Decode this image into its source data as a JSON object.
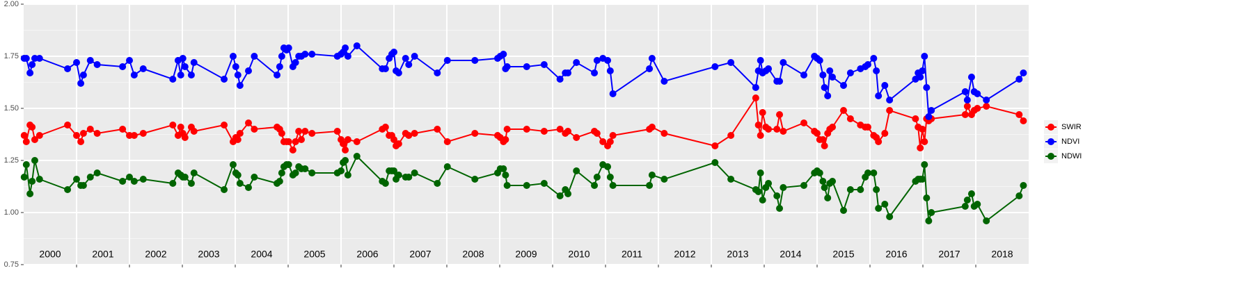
{
  "chart_data": {
    "type": "line",
    "x": [
      2000.01,
      2000.05,
      2000.12,
      2000.16,
      2000.21,
      2000.3,
      2000.83,
      2001.0,
      2001.08,
      2001.13,
      2001.26,
      2001.39,
      2001.87,
      2002.0,
      2002.09,
      2002.26,
      2002.82,
      2002.92,
      2002.97,
      2003.01,
      2003.05,
      2003.17,
      2003.22,
      2003.79,
      2003.96,
      2004.01,
      2004.05,
      2004.09,
      2004.25,
      2004.36,
      2004.79,
      2004.84,
      2004.88,
      2004.92,
      2004.97,
      2005.01,
      2005.09,
      2005.14,
      2005.2,
      2005.25,
      2005.32,
      2005.45,
      2005.93,
      2006.0,
      2006.04,
      2006.08,
      2006.13,
      2006.3,
      2006.78,
      2006.84,
      2006.91,
      2006.96,
      2007.0,
      2007.04,
      2007.09,
      2007.22,
      2007.28,
      2007.39,
      2007.82,
      2008.01,
      2008.53,
      2008.96,
      2009.01,
      2009.07,
      2009.11,
      2009.14,
      2009.51,
      2009.84,
      2010.14,
      2010.24,
      2010.29,
      2010.45,
      2010.79,
      2010.84,
      2010.95,
      2011.04,
      2011.09,
      2011.14,
      2011.83,
      2011.88,
      2012.11,
      2013.07,
      2013.37,
      2013.84,
      2013.89,
      2013.93,
      2013.97,
      2014.03,
      2014.08,
      2014.24,
      2014.29,
      2014.36,
      2014.75,
      2014.95,
      2015.0,
      2015.05,
      2015.11,
      2015.14,
      2015.2,
      2015.24,
      2015.29,
      2015.5,
      2015.63,
      2015.82,
      2015.91,
      2015.96,
      2016.07,
      2016.12,
      2016.16,
      2016.28,
      2016.37,
      2016.86,
      2016.91,
      2016.95,
      2016.99,
      2017.03,
      2017.07,
      2017.11,
      2017.16,
      2017.8,
      2017.84,
      2017.92,
      2017.97,
      2018.03,
      2018.2,
      2018.82,
      2018.9
    ],
    "series": [
      {
        "name": "SWIR",
        "color": "#ff0000",
        "values": [
          1.37,
          1.34,
          1.42,
          1.41,
          1.35,
          1.37,
          1.42,
          1.37,
          1.34,
          1.38,
          1.4,
          1.38,
          1.4,
          1.37,
          1.37,
          1.38,
          1.42,
          1.37,
          1.41,
          1.38,
          1.36,
          1.41,
          1.39,
          1.42,
          1.34,
          1.36,
          1.35,
          1.38,
          1.43,
          1.4,
          1.41,
          1.4,
          1.38,
          1.34,
          1.34,
          1.34,
          1.3,
          1.34,
          1.39,
          1.35,
          1.39,
          1.38,
          1.39,
          1.35,
          1.33,
          1.3,
          1.35,
          1.34,
          1.4,
          1.41,
          1.37,
          1.37,
          1.35,
          1.32,
          1.33,
          1.38,
          1.37,
          1.38,
          1.4,
          1.34,
          1.38,
          1.37,
          1.36,
          1.34,
          1.35,
          1.4,
          1.4,
          1.39,
          1.4,
          1.38,
          1.39,
          1.36,
          1.39,
          1.38,
          1.34,
          1.32,
          1.34,
          1.37,
          1.4,
          1.41,
          1.38,
          1.32,
          1.37,
          1.55,
          1.42,
          1.37,
          1.48,
          1.41,
          1.4,
          1.4,
          1.47,
          1.39,
          1.43,
          1.39,
          1.38,
          1.35,
          1.35,
          1.32,
          1.38,
          1.4,
          1.41,
          1.49,
          1.45,
          1.42,
          1.41,
          1.41,
          1.37,
          1.36,
          1.34,
          1.38,
          1.49,
          1.45,
          1.41,
          1.31,
          1.4,
          1.34,
          1.45,
          1.44,
          1.45,
          1.47,
          1.51,
          1.47,
          1.49,
          1.5,
          1.51,
          1.47,
          1.44
        ]
      },
      {
        "name": "NDVI",
        "color": "#0000ff",
        "values": [
          1.74,
          1.74,
          1.67,
          1.71,
          1.74,
          1.74,
          1.69,
          1.72,
          1.62,
          1.66,
          1.73,
          1.71,
          1.7,
          1.73,
          1.66,
          1.69,
          1.64,
          1.73,
          1.66,
          1.74,
          1.7,
          1.66,
          1.72,
          1.64,
          1.75,
          1.7,
          1.66,
          1.61,
          1.68,
          1.75,
          1.66,
          1.7,
          1.75,
          1.79,
          1.78,
          1.79,
          1.7,
          1.72,
          1.75,
          1.75,
          1.76,
          1.76,
          1.75,
          1.76,
          1.77,
          1.79,
          1.75,
          1.8,
          1.69,
          1.69,
          1.74,
          1.76,
          1.77,
          1.68,
          1.67,
          1.74,
          1.71,
          1.75,
          1.67,
          1.73,
          1.73,
          1.74,
          1.75,
          1.76,
          1.69,
          1.7,
          1.7,
          1.71,
          1.64,
          1.67,
          1.67,
          1.72,
          1.67,
          1.73,
          1.74,
          1.73,
          1.68,
          1.57,
          1.69,
          1.74,
          1.63,
          1.7,
          1.72,
          1.6,
          1.68,
          1.73,
          1.67,
          1.68,
          1.69,
          1.63,
          1.63,
          1.72,
          1.66,
          1.75,
          1.74,
          1.73,
          1.66,
          1.6,
          1.56,
          1.68,
          1.65,
          1.61,
          1.67,
          1.69,
          1.7,
          1.71,
          1.74,
          1.68,
          1.56,
          1.61,
          1.54,
          1.64,
          1.67,
          1.65,
          1.68,
          1.75,
          1.6,
          1.46,
          1.49,
          1.58,
          1.54,
          1.65,
          1.58,
          1.57,
          1.54,
          1.64,
          1.67
        ]
      },
      {
        "name": "NDWI",
        "color": "#006400",
        "values": [
          1.17,
          1.23,
          1.09,
          1.15,
          1.25,
          1.16,
          1.11,
          1.16,
          1.13,
          1.13,
          1.17,
          1.19,
          1.15,
          1.17,
          1.15,
          1.16,
          1.14,
          1.19,
          1.18,
          1.17,
          1.17,
          1.14,
          1.19,
          1.11,
          1.23,
          1.19,
          1.18,
          1.14,
          1.12,
          1.17,
          1.14,
          1.15,
          1.19,
          1.22,
          1.23,
          1.23,
          1.18,
          1.19,
          1.22,
          1.21,
          1.21,
          1.19,
          1.19,
          1.2,
          1.24,
          1.25,
          1.18,
          1.27,
          1.15,
          1.14,
          1.2,
          1.2,
          1.2,
          1.16,
          1.18,
          1.17,
          1.17,
          1.19,
          1.14,
          1.22,
          1.16,
          1.19,
          1.21,
          1.21,
          1.18,
          1.13,
          1.13,
          1.14,
          1.08,
          1.11,
          1.09,
          1.2,
          1.13,
          1.17,
          1.23,
          1.22,
          1.17,
          1.13,
          1.13,
          1.18,
          1.16,
          1.24,
          1.16,
          1.11,
          1.1,
          1.19,
          1.06,
          1.12,
          1.14,
          1.08,
          1.02,
          1.12,
          1.13,
          1.19,
          1.2,
          1.19,
          1.15,
          1.12,
          1.07,
          1.14,
          1.15,
          1.01,
          1.11,
          1.11,
          1.17,
          1.19,
          1.19,
          1.11,
          1.02,
          1.04,
          0.98,
          1.15,
          1.16,
          1.16,
          1.16,
          1.23,
          1.07,
          0.96,
          1.0,
          1.03,
          1.06,
          1.09,
          1.03,
          1.04,
          0.96,
          1.08,
          1.13
        ]
      }
    ],
    "xlim": [
      2000,
      2019
    ],
    "xticks": [
      2001,
      2002,
      2003,
      2004,
      2005,
      2006,
      2007,
      2008,
      2009,
      2010,
      2011,
      2012,
      2013,
      2014,
      2015,
      2016,
      2017,
      2018
    ],
    "year_labels": [
      2000,
      2001,
      2002,
      2003,
      2004,
      2005,
      2006,
      2007,
      2008,
      2009,
      2010,
      2011,
      2012,
      2013,
      2014,
      2015,
      2016,
      2017,
      2018
    ],
    "ylim": [
      0.75,
      2.0
    ],
    "yticks": [
      {
        "value": 0.75,
        "label": "0.75"
      },
      {
        "value": 1.0,
        "label": "1.00"
      },
      {
        "value": 1.25,
        "label": "1.25"
      },
      {
        "value": 1.5,
        "label": "1.50"
      },
      {
        "value": 1.75,
        "label": "1.75"
      },
      {
        "value": 2.0,
        "label": "2.00"
      }
    ],
    "grid": true,
    "legend": "right"
  }
}
